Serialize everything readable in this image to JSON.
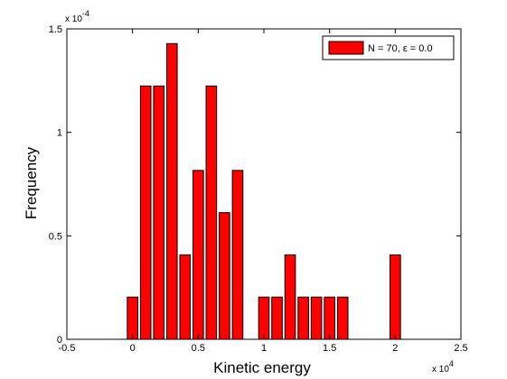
{
  "chart_data": {
    "type": "bar",
    "x": [
      0,
      1000,
      2000,
      3000,
      4000,
      5000,
      6000,
      7000,
      8000,
      10000,
      11000,
      12000,
      13000,
      14000,
      15000,
      16000,
      20000
    ],
    "values": [
      2.04e-05,
      0.0001224,
      0.0001224,
      0.0001429,
      4.08e-05,
      8.16e-05,
      0.0001224,
      6.12e-05,
      8.16e-05,
      2.04e-05,
      2.04e-05,
      4.08e-05,
      2.04e-05,
      2.04e-05,
      2.04e-05,
      2.04e-05,
      4.08e-05
    ],
    "bar_width": 800,
    "series": [
      {
        "name": "N = 70, ε = 0.0",
        "color": "#ff0000"
      }
    ],
    "xlabel": "Kinetic energy",
    "ylabel": "Frequency",
    "xlim": [
      -5000,
      25000
    ],
    "ylim": [
      0,
      0.00015
    ],
    "xticks": [
      -5000,
      0,
      5000,
      10000,
      15000,
      20000,
      25000
    ],
    "xtick_labels": [
      "-0.5",
      "0",
      "0.5",
      "1",
      "1.5",
      "2",
      "2.5"
    ],
    "yticks": [
      0,
      5e-05,
      0.0001,
      0.00015
    ],
    "ytick_labels": [
      "0",
      "0.5",
      "1",
      "1.5"
    ],
    "x_exponent": {
      "base": "x 10",
      "power": "4"
    },
    "y_exponent": {
      "base": "x 10",
      "power": "-4"
    },
    "grid": false,
    "legend_position": "top-right"
  }
}
